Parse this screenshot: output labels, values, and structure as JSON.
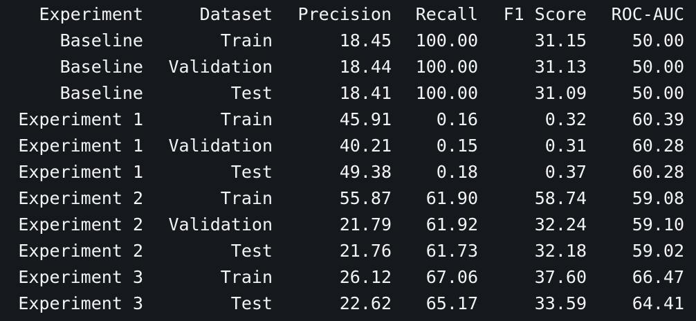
{
  "table": {
    "headers": [
      "Experiment",
      "Dataset",
      "Precision",
      "Recall",
      "F1 Score",
      "ROC-AUC"
    ],
    "rows": [
      [
        "Baseline",
        "Train",
        "18.45",
        "100.00",
        "31.15",
        "50.00"
      ],
      [
        "Baseline",
        "Validation",
        "18.44",
        "100.00",
        "31.13",
        "50.00"
      ],
      [
        "Baseline",
        "Test",
        "18.41",
        "100.00",
        "31.09",
        "50.00"
      ],
      [
        "Experiment 1",
        "Train",
        "45.91",
        "0.16",
        "0.32",
        "60.39"
      ],
      [
        "Experiment 1",
        "Validation",
        "40.21",
        "0.15",
        "0.31",
        "60.28"
      ],
      [
        "Experiment 1",
        "Test",
        "49.38",
        "0.18",
        "0.37",
        "60.28"
      ],
      [
        "Experiment 2",
        "Train",
        "55.87",
        "61.90",
        "58.74",
        "59.08"
      ],
      [
        "Experiment 2",
        "Validation",
        "21.79",
        "61.92",
        "32.24",
        "59.10"
      ],
      [
        "Experiment 2",
        "Test",
        "21.76",
        "61.73",
        "32.18",
        "59.02"
      ],
      [
        "Experiment 3",
        "Train",
        "26.12",
        "67.06",
        "37.60",
        "66.47"
      ],
      [
        "Experiment 3",
        "Test",
        "22.62",
        "65.17",
        "33.59",
        "64.41"
      ]
    ]
  },
  "colors": {
    "background": "#15181d",
    "text": "#f1f3f5"
  }
}
